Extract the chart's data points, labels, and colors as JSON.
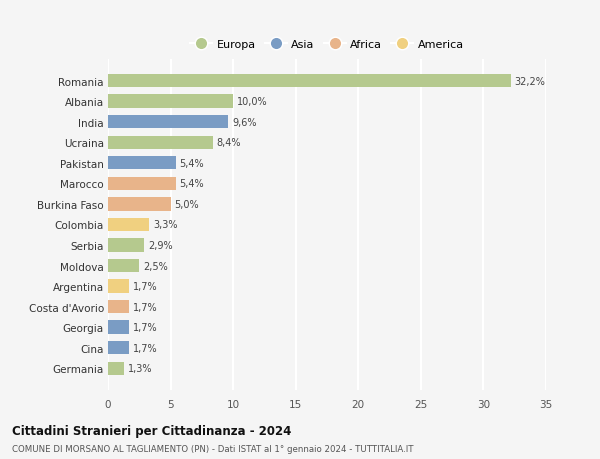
{
  "countries": [
    "Germania",
    "Cina",
    "Georgia",
    "Costa d'Avorio",
    "Argentina",
    "Moldova",
    "Serbia",
    "Colombia",
    "Burkina Faso",
    "Marocco",
    "Pakistan",
    "Ucraina",
    "India",
    "Albania",
    "Romania"
  ],
  "values": [
    1.3,
    1.7,
    1.7,
    1.7,
    1.7,
    2.5,
    2.9,
    3.3,
    5.0,
    5.4,
    5.4,
    8.4,
    9.6,
    10.0,
    32.2
  ],
  "labels": [
    "1,3%",
    "1,7%",
    "1,7%",
    "1,7%",
    "1,7%",
    "2,5%",
    "2,9%",
    "3,3%",
    "5,0%",
    "5,4%",
    "5,4%",
    "8,4%",
    "9,6%",
    "10,0%",
    "32,2%"
  ],
  "continents": [
    "Europa",
    "Asia",
    "Asia",
    "Africa",
    "America",
    "Europa",
    "Europa",
    "America",
    "Africa",
    "Africa",
    "Asia",
    "Europa",
    "Asia",
    "Europa",
    "Europa"
  ],
  "continent_colors": {
    "Europa": "#b5c98e",
    "Asia": "#7a9cc4",
    "Africa": "#e8b48a",
    "America": "#f0d080"
  },
  "legend_order": [
    "Europa",
    "Asia",
    "Africa",
    "America"
  ],
  "title": "Cittadini Stranieri per Cittadinanza - 2024",
  "subtitle": "COMUNE DI MORSANO AL TAGLIAMENTO (PN) - Dati ISTAT al 1° gennaio 2024 - TUTTITALIA.IT",
  "xlim": [
    0,
    35
  ],
  "xticks": [
    0,
    5,
    10,
    15,
    20,
    25,
    30,
    35
  ],
  "bg_color": "#f5f5f5",
  "grid_color": "#ffffff",
  "bar_height": 0.65
}
